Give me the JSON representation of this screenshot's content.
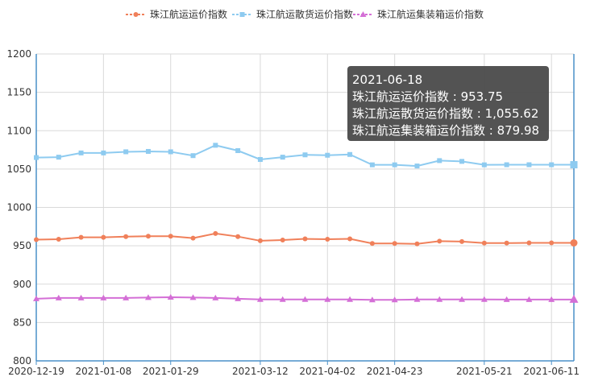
{
  "chart_data": {
    "type": "line",
    "title": "",
    "xlabel": "",
    "ylabel": "",
    "ylim": [
      800,
      1200
    ],
    "yticks": [
      800,
      850,
      900,
      950,
      1000,
      1050,
      1100,
      1150,
      1200
    ],
    "grid": true,
    "legend_position": "top-center",
    "x": [
      "2020-12-19",
      "2020-12-26",
      "2021-01-01",
      "2021-01-08",
      "2021-01-15",
      "2021-01-22",
      "2021-01-29",
      "2021-02-05",
      "2021-02-26",
      "2021-03-05",
      "2021-03-12",
      "2021-03-19",
      "2021-03-26",
      "2021-04-02",
      "2021-04-09",
      "2021-04-16",
      "2021-04-23",
      "2021-04-30",
      "2021-05-07",
      "2021-05-14",
      "2021-05-21",
      "2021-05-28",
      "2021-06-04",
      "2021-06-11",
      "2021-06-18"
    ],
    "x_tick_labels": [
      "2020-12-19",
      "2021-01-08",
      "2021-01-29",
      "2021-03-12",
      "2021-04-02",
      "2021-04-23",
      "2021-05-21",
      "2021-06-11"
    ],
    "series": [
      {
        "name": "珠江航运运价指数",
        "color": "#f0805a",
        "marker": "circle",
        "values": [
          958,
          958.5,
          961,
          961,
          962,
          962.5,
          962.5,
          960,
          966,
          962,
          956.5,
          957.5,
          959,
          958.5,
          959,
          953,
          953,
          952.5,
          956,
          955.5,
          953.5,
          953.5,
          953.75,
          953.75,
          953.75
        ]
      },
      {
        "name": "珠江航运散货运价指数",
        "color": "#8ecbf0",
        "marker": "square",
        "values": [
          1065,
          1065.5,
          1071,
          1071,
          1072.5,
          1073,
          1072.5,
          1067.5,
          1081,
          1074,
          1062.5,
          1065.5,
          1068.5,
          1068,
          1069,
          1055.5,
          1055.5,
          1054,
          1061,
          1060,
          1055.5,
          1055.62,
          1055.62,
          1055.62,
          1055.62
        ]
      },
      {
        "name": "珠江航运集装箱运价指数",
        "color": "#d46fd6",
        "marker": "triangle",
        "values": [
          881,
          882,
          882,
          882,
          882,
          882.5,
          883,
          882.5,
          882,
          881,
          880,
          880,
          880,
          880,
          880,
          879.5,
          879.5,
          880,
          880,
          880,
          880,
          879.98,
          879.98,
          879.98,
          879.98
        ]
      }
    ],
    "tooltip": {
      "date": "2021-06-18",
      "lines": [
        "珠江航运运价指数 : 953.75",
        "珠江航运散货运价指数 : 1,055.62",
        "珠江航运集装箱运价指数 : 879.98"
      ]
    },
    "colors": {
      "axis": "#4a90c8",
      "grid": "#d9d9d9",
      "tooltip_bg": "#4a4a4a"
    }
  }
}
